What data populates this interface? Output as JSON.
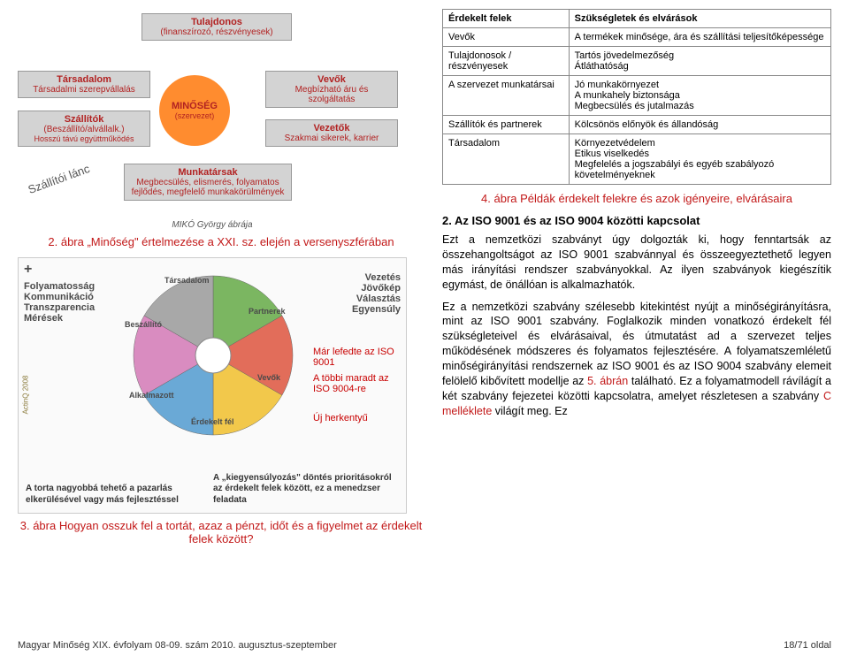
{
  "diagram1": {
    "society": {
      "title": "Társadalom",
      "sub": "Társadalmi szerepvállalás"
    },
    "suppliers": {
      "title": "Szállítók",
      "sub": "(Beszállító/alvállalk.)",
      "sub2": "Hosszú távú együttműködés"
    },
    "owner": {
      "title": "Tulajdonos",
      "sub": "(finanszírozó, részvényesek)"
    },
    "buyers": {
      "title": "Vevők",
      "sub": "Megbízható áru és szolgáltatás"
    },
    "leaders": {
      "title": "Vezetők",
      "sub": "Szakmai sikerek, karrier"
    },
    "quality": {
      "title": "MINŐSÉG",
      "sub": "(szervezet)"
    },
    "staff": {
      "title": "Munkatársak",
      "sub": "Megbecsülés, elismerés, folyamatos fejlődés, megfelelő munkakörülmények"
    },
    "slant": "Szállítói lánc",
    "attribution": "MIKÓ György ábrája",
    "box_bg": "#d3d3d3",
    "circle_bg": "#ff8c2f",
    "title_color": "#b22222"
  },
  "fig2_caption": "2. ábra „Minőség\" értelmezése a XXI. sz. elején a versenyszférában",
  "diagram2": {
    "plus": "+",
    "left_labels": "Folyamatosság\nKommunikáció\nTranszparencia\nMérések",
    "right_labels": "Vezetés\nJövőkép\nVálasztás\nEgyensúly",
    "watermark": "ActinQ 2008",
    "pie": {
      "slices": [
        {
          "label": "Társadalom",
          "color": "#7bb661",
          "angle": 60
        },
        {
          "label": "Partnerek",
          "color": "#e26d5a",
          "angle": 60
        },
        {
          "label": "Vevők",
          "color": "#f2c84b",
          "angle": 60
        },
        {
          "label": "Érdekelt fél",
          "color": "#6aa9d6",
          "angle": 60
        },
        {
          "label": "Alkalmazott",
          "color": "#d98cc0",
          "angle": 60
        },
        {
          "label": "Beszállító",
          "color": "#a8a8a8",
          "angle": 60
        }
      ],
      "center_color": "#ffffff"
    },
    "red_already": "Már lefedte az ISO 9001",
    "red_rest": "A többi maradt az ISO 9004-re",
    "red_new": "Új herkentyű",
    "annot_left": "A torta nagyobbá tehető a pazarlás elkerülésével vagy más fejlesztéssel",
    "annot_right": "A „kiegyensúlyozás\" döntés prioritásokról az érdekelt felek között, ez a menedzser feladata"
  },
  "fig3_caption": "3. ábra Hogyan osszuk fel a tortát, azaz a pénzt, időt és a figyelmet az érdekelt felek között?",
  "table": {
    "head": {
      "c1": "Érdekelt felek",
      "c2": "Szükségletek és elvárások"
    },
    "rows": [
      {
        "c1": "Vevők",
        "c2": "A termékek minősége, ára és szállítási teljesítőképessége"
      },
      {
        "c1": "Tulajdonosok / részvényesek",
        "c2": "Tartós jövedelmezőség\nÁtláthatóság"
      },
      {
        "c1": "A szervezet munkatársai",
        "c2": "Jó munkakörnyezet\nA munkahely biztonsága\nMegbecsülés és jutalmazás"
      },
      {
        "c1": "Szállítók és partnerek",
        "c2": "Kölcsönös előnyök és állandóság"
      },
      {
        "c1": "Társadalom",
        "c2": "Környezetvédelem\nEtikus viselkedés\nMegfelelés a jogszabályi és egyéb szabályozó követelményeknek"
      }
    ]
  },
  "fig4_caption": "4. ábra Példák érdekelt felekre és azok igényeire, elvárásaira",
  "section_heading": "2. Az ISO 9001 és az ISO 9004 közötti kapcsolat",
  "para1": "Ezt a nemzetközi szabványt úgy dolgozták ki, hogy fenntartsák az összehangoltságot az ISO 9001 szabvánnyal és összeegyeztethető legyen más irányítási rendszer szabványokkal. Az ilyen szabványok kiegészítik egymást, de önállóan is alkalmazhatók.",
  "para2a": "Ez a nemzetközi szabvány szélesebb kitekintést nyújt a minőségirányításra, mint az ISO 9001 szabvány. Foglalkozik minden vonatkozó érdekelt fél szükségleteivel és elvárásaival, és útmutatást ad a szervezet teljes működésének módszeres és folyamatos fejlesztésére. A folyamatszemléletű minőségirányítási rendszernek az ISO 9001 és az ISO 9004 szabvány elemeit felölelő kibővített modellje az ",
  "para2b": "5. ábrán",
  "para2c": " található. Ez a folyamatmodell rávílágít a két szabvány fejezetei közötti kapcsolatra, amelyet részletesen a szabvány ",
  "para2d": "C melléklete",
  "para2e": " világít meg. Ez",
  "footer": {
    "left": "Magyar Minőség XIX. évfolyam 08-09. szám 2010. augusztus-szeptember",
    "right": "18/71 oldal"
  }
}
